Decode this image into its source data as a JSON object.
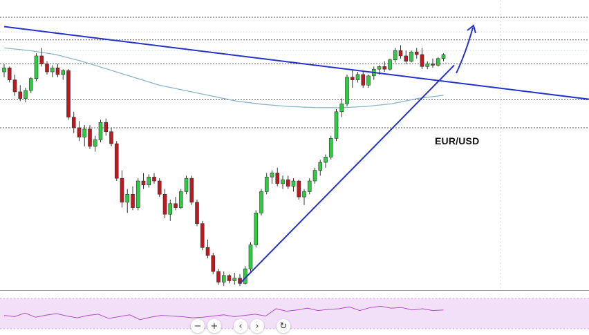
{
  "chart_data": {
    "type": "candlestick",
    "title": "EUR/USD",
    "series": [
      {
        "name": "price",
        "ohlc": [
          [
            1.116,
            1.119,
            1.114,
            1.1175
          ],
          [
            1.1175,
            1.118,
            1.112,
            1.113
          ],
          [
            1.113,
            1.115,
            1.107,
            1.1085
          ],
          [
            1.1085,
            1.111,
            1.105,
            1.106
          ],
          [
            1.106,
            1.11,
            1.1045,
            1.109
          ],
          [
            1.109,
            1.114,
            1.108,
            1.1135
          ],
          [
            1.1135,
            1.123,
            1.1125,
            1.122
          ],
          [
            1.122,
            1.125,
            1.118,
            1.119
          ],
          [
            1.119,
            1.12,
            1.115,
            1.116
          ],
          [
            1.116,
            1.1185,
            1.114,
            1.1175
          ],
          [
            1.1175,
            1.119,
            1.114,
            1.115
          ],
          [
            1.115,
            1.117,
            1.113,
            1.1165
          ],
          [
            1.1165,
            1.117,
            1.098,
            1.099
          ],
          [
            1.099,
            1.101,
            1.093,
            1.095
          ],
          [
            1.095,
            1.0975,
            1.09,
            1.0915
          ],
          [
            1.0915,
            1.096,
            1.088,
            1.0945
          ],
          [
            1.0945,
            1.096,
            1.087,
            1.088
          ],
          [
            1.088,
            1.092,
            1.086,
            1.0905
          ],
          [
            1.0905,
            1.098,
            1.0895,
            1.097
          ],
          [
            1.097,
            1.0985,
            1.092,
            1.0935
          ],
          [
            1.0935,
            1.095,
            1.088,
            1.089
          ],
          [
            1.089,
            1.09,
            1.075,
            1.076
          ],
          [
            1.076,
            1.079,
            1.065,
            1.067
          ],
          [
            1.067,
            1.072,
            1.063,
            1.07
          ],
          [
            1.07,
            1.073,
            1.064,
            1.065
          ],
          [
            1.065,
            1.076,
            1.064,
            1.075
          ],
          [
            1.075,
            1.078,
            1.072,
            1.0735
          ],
          [
            1.0735,
            1.0775,
            1.0725,
            1.0765
          ],
          [
            1.0765,
            1.078,
            1.074,
            1.075
          ],
          [
            1.075,
            1.076,
            1.069,
            1.07
          ],
          [
            1.07,
            1.072,
            1.061,
            1.0625
          ],
          [
            1.0625,
            1.068,
            1.06,
            1.0665
          ],
          [
            1.0665,
            1.069,
            1.064,
            1.065
          ],
          [
            1.065,
            1.072,
            1.0645,
            1.071
          ],
          [
            1.071,
            1.077,
            1.07,
            1.076
          ],
          [
            1.076,
            1.077,
            1.066,
            1.067
          ],
          [
            1.067,
            1.068,
            1.058,
            1.059
          ],
          [
            1.059,
            1.06,
            1.049,
            1.05
          ],
          [
            1.05,
            1.053,
            1.046,
            1.047
          ],
          [
            1.047,
            1.048,
            1.04,
            1.041
          ],
          [
            1.041,
            1.042,
            1.036,
            1.037
          ],
          [
            1.037,
            1.041,
            1.0355,
            1.0395
          ],
          [
            1.0395,
            1.04,
            1.0365,
            1.0375
          ],
          [
            1.0375,
            1.0405,
            1.036,
            1.0385
          ],
          [
            1.0385,
            1.04,
            1.0355,
            1.0365
          ],
          [
            1.0365,
            1.043,
            1.036,
            1.042
          ],
          [
            1.042,
            1.052,
            1.041,
            1.051
          ],
          [
            1.051,
            1.064,
            1.05,
            1.063
          ],
          [
            1.063,
            1.072,
            1.062,
            1.071
          ],
          [
            1.071,
            1.078,
            1.07,
            1.0765
          ],
          [
            1.0765,
            1.079,
            1.074,
            1.078
          ],
          [
            1.078,
            1.08,
            1.073,
            1.074
          ],
          [
            1.074,
            1.077,
            1.072,
            1.0755
          ],
          [
            1.0755,
            1.077,
            1.072,
            1.073
          ],
          [
            1.073,
            1.076,
            1.071,
            1.075
          ],
          [
            1.075,
            1.0755,
            1.068,
            1.069
          ],
          [
            1.069,
            1.072,
            1.066,
            1.071
          ],
          [
            1.071,
            1.076,
            1.07,
            1.075
          ],
          [
            1.075,
            1.08,
            1.074,
            1.079
          ],
          [
            1.079,
            1.083,
            1.077,
            1.082
          ],
          [
            1.082,
            1.085,
            1.08,
            1.084
          ],
          [
            1.084,
            1.092,
            1.083,
            1.091
          ],
          [
            1.091,
            1.102,
            1.09,
            1.101
          ],
          [
            1.101,
            1.106,
            1.099,
            1.104
          ],
          [
            1.104,
            1.115,
            1.103,
            1.114
          ],
          [
            1.114,
            1.117,
            1.11,
            1.113
          ],
          [
            1.113,
            1.116,
            1.112,
            1.115
          ],
          [
            1.115,
            1.116,
            1.11,
            1.111
          ],
          [
            1.111,
            1.115,
            1.11,
            1.1145
          ],
          [
            1.1145,
            1.118,
            1.113,
            1.117
          ],
          [
            1.117,
            1.1185,
            1.115,
            1.118
          ],
          [
            1.118,
            1.12,
            1.116,
            1.117
          ],
          [
            1.117,
            1.121,
            1.1165,
            1.1205
          ],
          [
            1.1205,
            1.125,
            1.1195,
            1.124
          ],
          [
            1.124,
            1.126,
            1.121,
            1.122
          ],
          [
            1.122,
            1.124,
            1.119,
            1.12
          ],
          [
            1.12,
            1.124,
            1.1195,
            1.1235
          ],
          [
            1.1235,
            1.125,
            1.121,
            1.1225
          ],
          [
            1.1225,
            1.125,
            1.117,
            1.118
          ],
          [
            1.118,
            1.12,
            1.117,
            1.119
          ],
          [
            1.119,
            1.121,
            1.1175,
            1.1185
          ],
          [
            1.1185,
            1.1215,
            1.118,
            1.121
          ],
          [
            1.121,
            1.123,
            1.12,
            1.1225
          ]
        ]
      },
      {
        "name": "moving-average",
        "values": [
          1.125,
          1.124,
          1.1225,
          1.12,
          1.117,
          1.114,
          1.111,
          1.109,
          1.107,
          1.105,
          1.1038,
          1.103,
          1.1026,
          1.1025,
          1.103,
          1.104,
          1.106,
          1.1072
        ]
      },
      {
        "name": "rsi",
        "values": [
          44,
          40,
          52,
          38,
          45,
          50,
          42,
          36,
          44,
          48,
          34,
          40,
          46,
          30,
          38,
          44,
          42,
          40,
          36,
          38,
          42,
          46,
          40,
          44,
          48,
          42,
          66,
          58,
          62,
          68,
          60,
          64,
          66,
          72,
          60,
          70,
          74,
          68,
          70,
          62,
          66,
          60,
          62
        ]
      }
    ],
    "ylim": [
      1.034,
      1.143
    ],
    "rsi_ylim": [
      0,
      100
    ],
    "horizontal_levels": [
      1.1365,
      1.128,
      1.119,
      1.1055,
      1.095
    ],
    "trendlines": [
      {
        "name": "descending-resistance",
        "from": [
          0,
          1.133
        ],
        "to": [
          110,
          1.1055
        ]
      },
      {
        "name": "ascending-support",
        "from": [
          44,
          1.0365
        ],
        "to": [
          84,
          1.1185
        ]
      }
    ],
    "annotation": "EUR/USD",
    "grid": false,
    "colors": {
      "bull": "#2ecc40",
      "bear": "#c0181e",
      "trendline": "#2332c8",
      "level": "#555555",
      "moving_average": "#8ab4c8",
      "rsi_line": "#b04cc8",
      "rsi_band": "#f2e0f8"
    }
  },
  "controls": [
    {
      "icon": "minus-icon",
      "glyph": "−"
    },
    {
      "icon": "plus-icon",
      "glyph": "+"
    },
    {
      "icon": "chevron-left-icon",
      "glyph": "‹"
    },
    {
      "icon": "chevron-right-icon",
      "glyph": "›"
    },
    {
      "icon": "reset-icon",
      "glyph": "↻"
    }
  ]
}
